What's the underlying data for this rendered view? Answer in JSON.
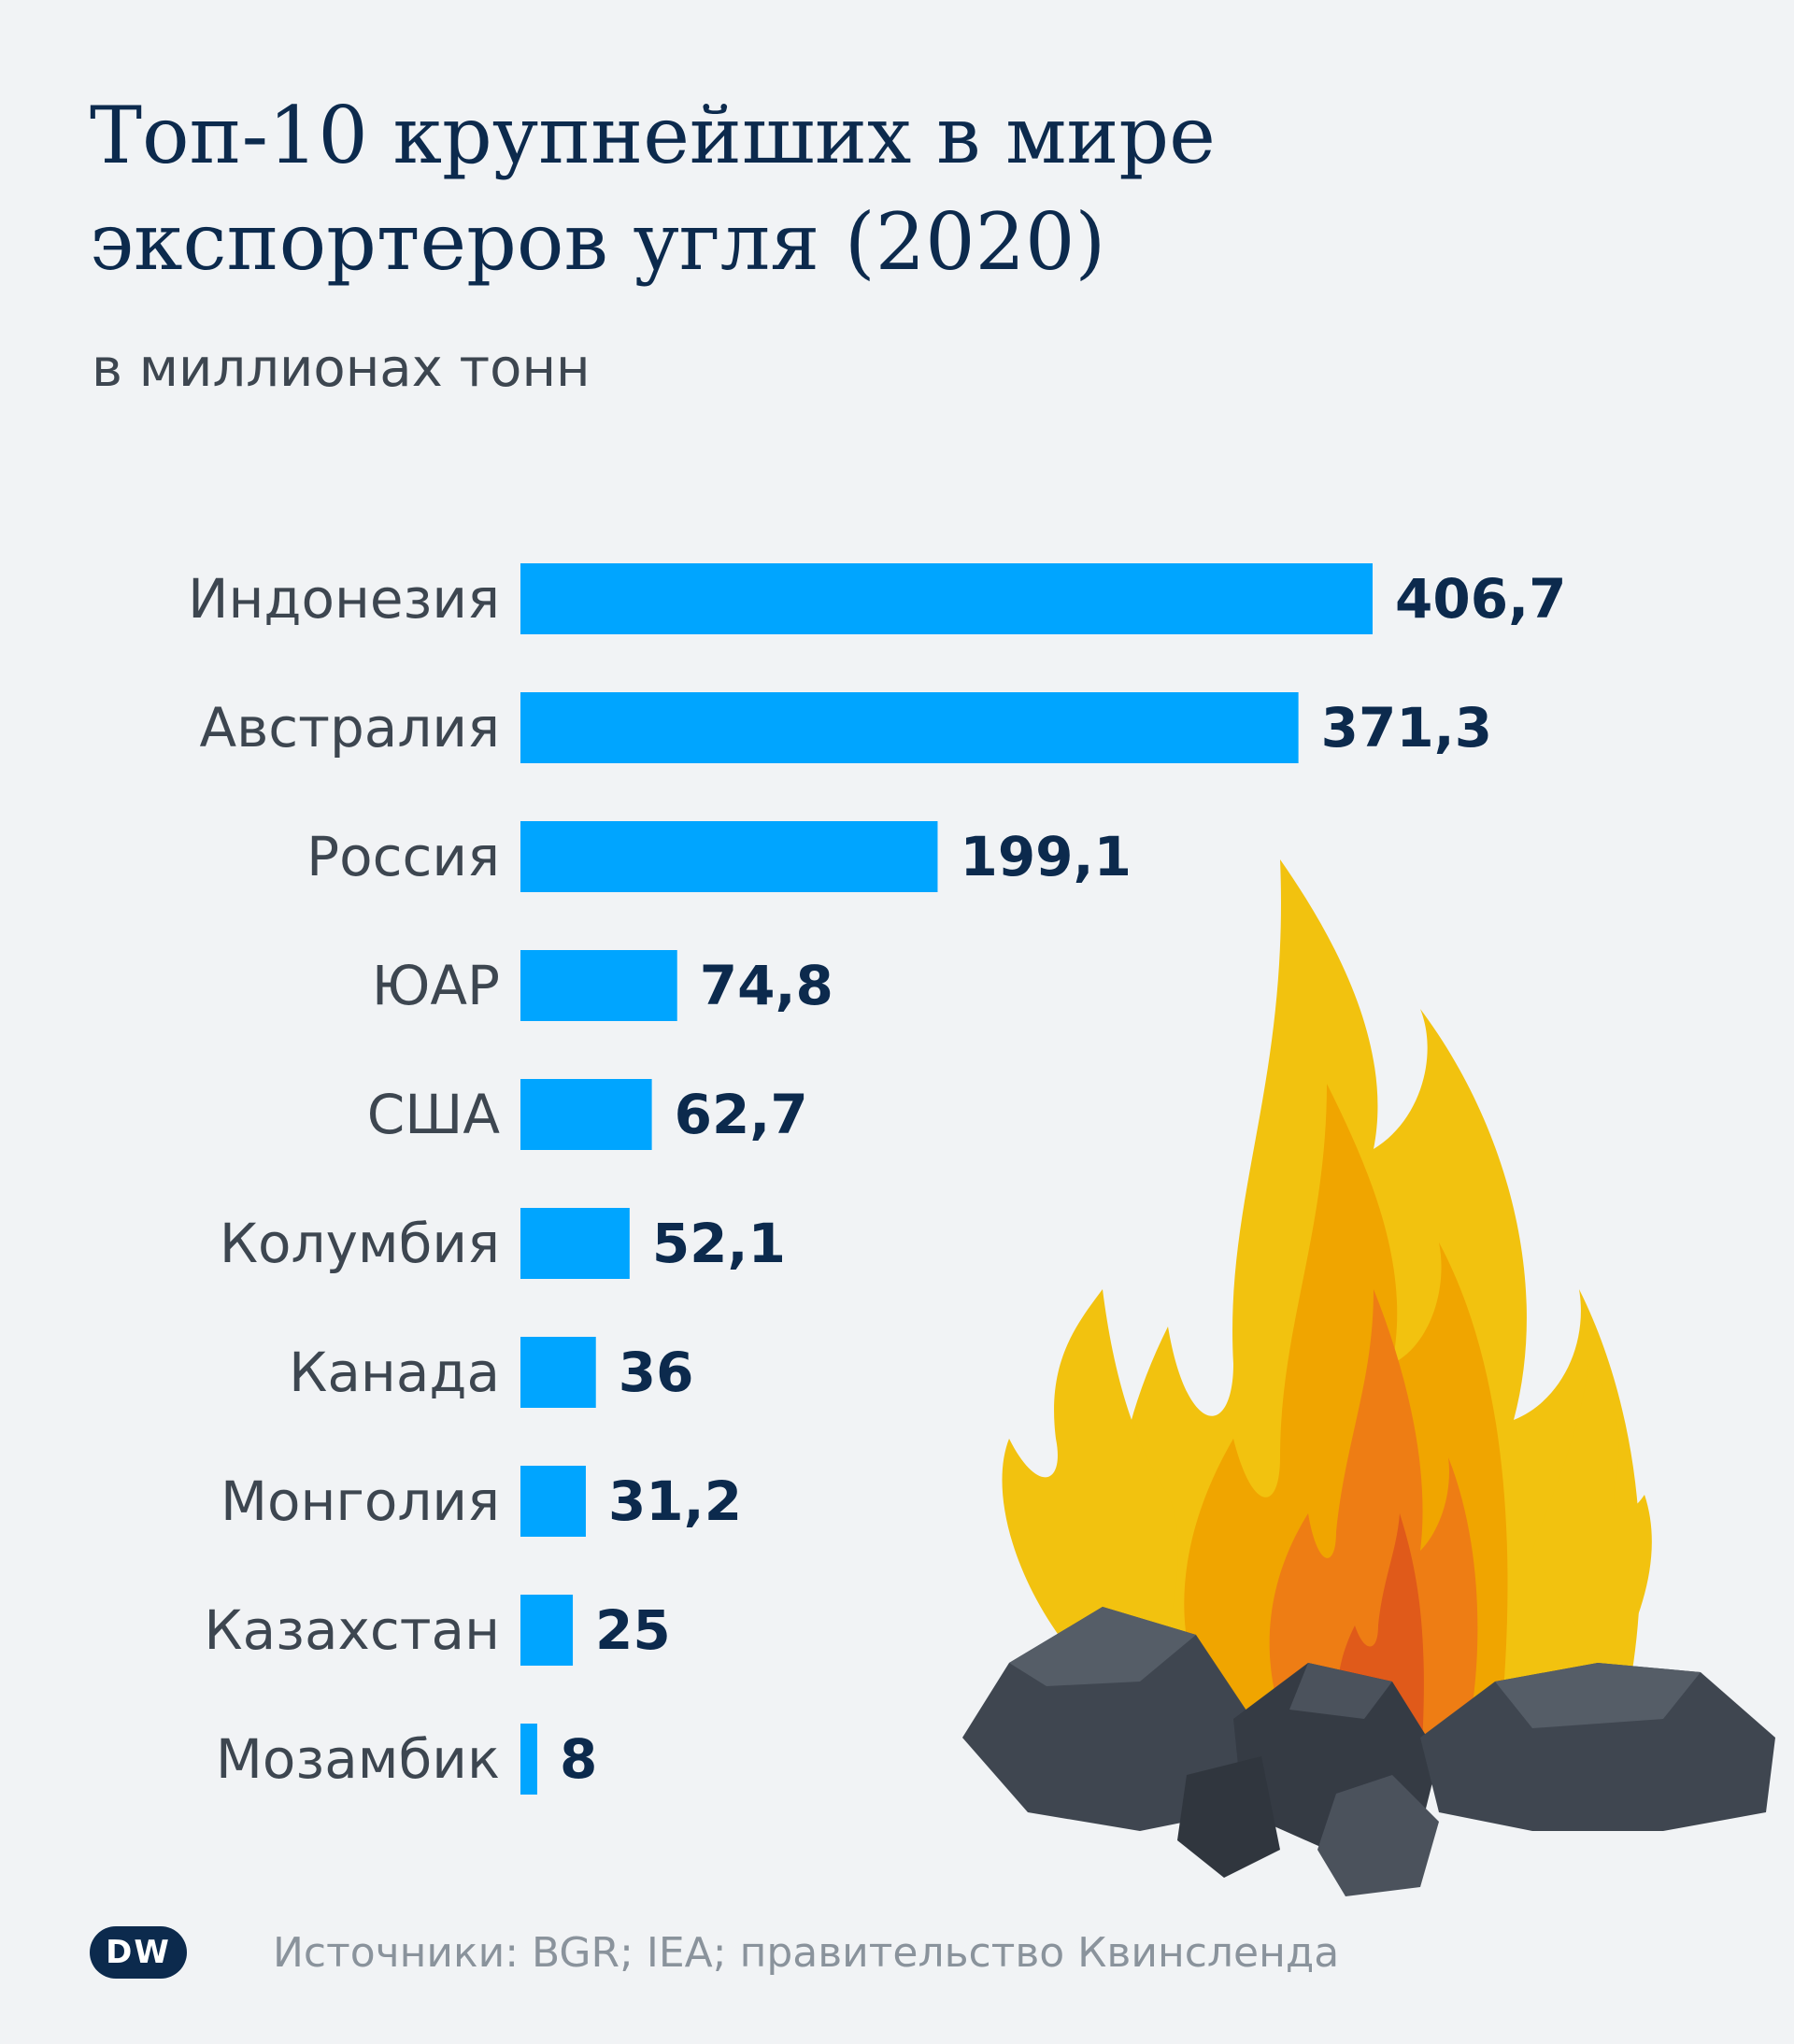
{
  "brand": {
    "logo_text": "DW",
    "accent": "#00a5ff",
    "text_dark": "#0c2a4d"
  },
  "chart_data": {
    "type": "bar",
    "orientation": "horizontal",
    "title": "Топ-10 крупнейших в мире экспортеров угля (2020)",
    "subtitle": "в миллионах тонн",
    "categories": [
      "Индонезия",
      "Австралия",
      "Россия",
      "ЮАР",
      "США",
      "Колумбия",
      "Канада",
      "Монголия",
      "Казахстан",
      "Мозамбик"
    ],
    "values": [
      406.7,
      371.3,
      199.1,
      74.8,
      62.7,
      52.1,
      36,
      31.2,
      25,
      8
    ],
    "value_labels": [
      "406,7",
      "371,3",
      "199,1",
      "74,8",
      "62,7",
      "52,1",
      "36",
      "31,2",
      "25",
      "8"
    ],
    "xlim": [
      0,
      406.7
    ],
    "grid": false,
    "bar_color": "#00a5ff"
  },
  "footer": {
    "source": "Источники: BGR; IEA; правительство Квинсленда"
  }
}
